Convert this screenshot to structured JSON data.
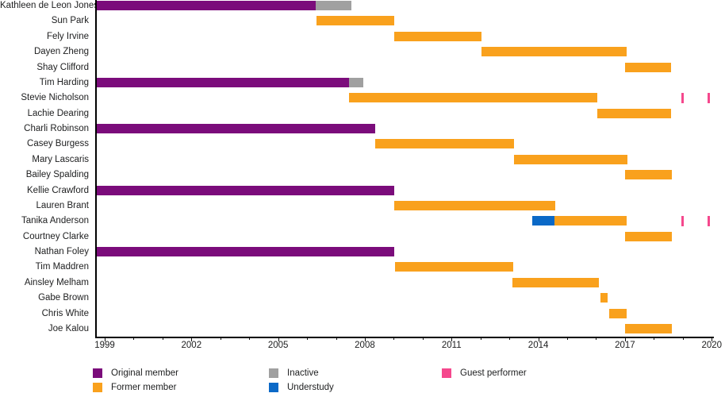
{
  "chart_data": {
    "type": "timeline-gantt",
    "title": "",
    "axis": {
      "unit": "year",
      "x_min_year": 1998.68,
      "x_max_year": 2020.08,
      "labeled_tick_years": [
        1999,
        2002,
        2005,
        2008,
        2011,
        2014,
        2017,
        2020
      ],
      "minor_tick_interval_years": 1,
      "grid": "off",
      "legend_position": "bottom"
    },
    "legend": [
      {
        "key": "original",
        "label": "Original member",
        "color": "#7B0C7B"
      },
      {
        "key": "former",
        "label": "Former member",
        "color": "#F9A11D"
      },
      {
        "key": "inactive",
        "label": "Inactive",
        "color": "#A0A0A0"
      },
      {
        "key": "understudy",
        "label": "Understudy",
        "color": "#0B69C7"
      },
      {
        "key": "guest",
        "label": "Guest performer",
        "color": "#F5488D"
      }
    ],
    "rows": [
      {
        "name": "Kathleen de Leon Jones",
        "segments": [
          {
            "type": "original",
            "start": 1998.7,
            "end": 2006.3
          },
          {
            "type": "inactive",
            "start": 2006.3,
            "end": 2007.53
          }
        ],
        "events": []
      },
      {
        "name": "Sun Park",
        "segments": [
          {
            "type": "former",
            "start": 2006.33,
            "end": 2009.02
          }
        ],
        "events": []
      },
      {
        "name": "Fely Irvine",
        "segments": [
          {
            "type": "former",
            "start": 2009.02,
            "end": 2012.03
          }
        ],
        "events": []
      },
      {
        "name": "Dayen Zheng",
        "segments": [
          {
            "type": "former",
            "start": 2012.03,
            "end": 2017.05
          }
        ],
        "events": []
      },
      {
        "name": "Shay Clifford",
        "segments": [
          {
            "type": "former",
            "start": 2017.0,
            "end": 2018.6
          }
        ],
        "events": []
      },
      {
        "name": "Tim Harding",
        "segments": [
          {
            "type": "original",
            "start": 1998.7,
            "end": 2007.45
          },
          {
            "type": "inactive",
            "start": 2007.45,
            "end": 2007.95
          }
        ],
        "events": []
      },
      {
        "name": "Stevie Nicholson",
        "segments": [
          {
            "type": "former",
            "start": 2007.45,
            "end": 2016.05
          }
        ],
        "events": [
          {
            "type": "guest",
            "year": 2019.0
          },
          {
            "type": "guest",
            "year": 2019.9
          }
        ]
      },
      {
        "name": "Lachie Dearing",
        "segments": [
          {
            "type": "former",
            "start": 2016.05,
            "end": 2018.6
          }
        ],
        "events": []
      },
      {
        "name": "Charli Robinson",
        "segments": [
          {
            "type": "original",
            "start": 1998.7,
            "end": 2008.35
          }
        ],
        "events": []
      },
      {
        "name": "Casey Burgess",
        "segments": [
          {
            "type": "former",
            "start": 2008.35,
            "end": 2013.15
          }
        ],
        "events": []
      },
      {
        "name": "Mary Lascaris",
        "segments": [
          {
            "type": "former",
            "start": 2013.15,
            "end": 2017.08
          }
        ],
        "events": []
      },
      {
        "name": "Bailey Spalding",
        "segments": [
          {
            "type": "former",
            "start": 2017.0,
            "end": 2018.62
          }
        ],
        "events": []
      },
      {
        "name": "Kellie Crawford",
        "segments": [
          {
            "type": "original",
            "start": 1998.7,
            "end": 2009.02
          }
        ],
        "events": []
      },
      {
        "name": "Lauren Brant",
        "segments": [
          {
            "type": "former",
            "start": 2009.02,
            "end": 2014.6
          }
        ],
        "events": []
      },
      {
        "name": "Tanika Anderson",
        "segments": [
          {
            "type": "understudy",
            "start": 2013.8,
            "end": 2014.55
          },
          {
            "type": "former",
            "start": 2014.55,
            "end": 2017.05
          }
        ],
        "events": [
          {
            "type": "guest",
            "year": 2019.0
          },
          {
            "type": "guest",
            "year": 2019.9
          }
        ]
      },
      {
        "name": "Courtney Clarke",
        "segments": [
          {
            "type": "former",
            "start": 2017.0,
            "end": 2018.62
          }
        ],
        "events": []
      },
      {
        "name": "Nathan Foley",
        "segments": [
          {
            "type": "original",
            "start": 1998.7,
            "end": 2009.02
          }
        ],
        "events": []
      },
      {
        "name": "Tim Maddren",
        "segments": [
          {
            "type": "former",
            "start": 2009.04,
            "end": 2013.13
          }
        ],
        "events": []
      },
      {
        "name": "Ainsley Melham",
        "segments": [
          {
            "type": "former",
            "start": 2013.1,
            "end": 2016.1
          }
        ],
        "events": []
      },
      {
        "name": "Gabe Brown",
        "segments": [
          {
            "type": "former",
            "start": 2016.15,
            "end": 2016.4
          }
        ],
        "events": []
      },
      {
        "name": "Chris White",
        "segments": [
          {
            "type": "former",
            "start": 2016.45,
            "end": 2017.05
          }
        ],
        "events": []
      },
      {
        "name": "Joe Kalou",
        "segments": [
          {
            "type": "former",
            "start": 2017.0,
            "end": 2018.62
          }
        ],
        "events": []
      }
    ]
  }
}
